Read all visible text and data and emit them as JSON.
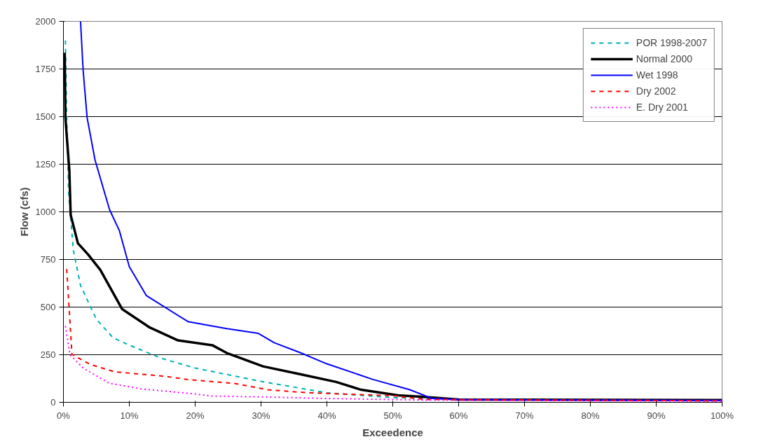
{
  "chart_data": {
    "type": "line",
    "xlabel": "Exceedence",
    "ylabel": "Flow (cfs)",
    "xlim": [
      0,
      100
    ],
    "xticks": [
      {
        "value": 0,
        "label": "0%"
      },
      {
        "value": 10,
        "label": "10%"
      },
      {
        "value": 20,
        "label": "20%"
      },
      {
        "value": 30,
        "label": "30%"
      },
      {
        "value": 40,
        "label": "40%"
      },
      {
        "value": 50,
        "label": "50%"
      },
      {
        "value": 60,
        "label": "60%"
      },
      {
        "value": 70,
        "label": "70%"
      },
      {
        "value": 80,
        "label": "80%"
      },
      {
        "value": 90,
        "label": "90%"
      },
      {
        "value": 100,
        "label": "100%"
      }
    ],
    "ylim": [
      0,
      2000
    ],
    "yticks": [
      0,
      250,
      500,
      750,
      1000,
      1250,
      1500,
      1750,
      2000
    ],
    "grid": "y",
    "legend": "top right",
    "series": [
      {
        "name": "POR 1998-2007",
        "color": "#00b0b0",
        "line_style": "dashed",
        "x": [
          0.3,
          0.5,
          0.8,
          1.5,
          2.6,
          5,
          7.5,
          10,
          15,
          20,
          30,
          40,
          50,
          60,
          100
        ],
        "values": [
          1900,
          1500,
          1100,
          800,
          613,
          436,
          340,
          300,
          230,
          180,
          110,
          50,
          25,
          15,
          8
        ]
      },
      {
        "name": "Normal 2000",
        "color": "#000000",
        "line_style": "solid",
        "x": [
          0.2,
          0.3,
          0.9,
          1.1,
          2.2,
          3.7,
          5.6,
          8.9,
          13,
          17.4,
          22.6,
          24.8,
          30.3,
          35.9,
          41.4,
          45.2,
          50.8,
          54.4,
          60,
          100
        ],
        "values": [
          1835,
          1494,
          1218,
          984,
          835,
          778,
          695,
          490,
          395,
          325,
          300,
          259,
          189,
          148,
          107,
          66,
          37,
          29,
          15,
          12
        ]
      },
      {
        "name": "Wet 1998",
        "color": "#0000ff",
        "line_style": "solid",
        "x": [
          2.6,
          3,
          3.6,
          4.8,
          7,
          8.5,
          10,
          12.6,
          18.9,
          24.8,
          29.6,
          32,
          36,
          40,
          47,
          52.6,
          56,
          60,
          80,
          100
        ],
        "values": [
          2000,
          1740,
          1494,
          1272,
          1012,
          901,
          712,
          560,
          424,
          387,
          362,
          313,
          260,
          202,
          120,
          66,
          20,
          15,
          12,
          10
        ]
      },
      {
        "name": "Dry 2002",
        "color": "#ff0000",
        "line_style": "dashed",
        "x": [
          0.5,
          1.3,
          4,
          7.8,
          15.6,
          19,
          26,
          31,
          36,
          41,
          50,
          55,
          100
        ],
        "values": [
          700,
          251,
          200,
          160,
          136,
          119,
          99,
          66,
          53,
          45,
          35,
          15,
          8
        ]
      },
      {
        "name": "E. Dry 2001",
        "color": "#ff00ff",
        "line_style": "dotted",
        "x": [
          0.3,
          1,
          3,
          7,
          12,
          19.7,
          22.5,
          29.7,
          40,
          55,
          100
        ],
        "values": [
          400,
          250,
          180,
          100,
          70,
          45,
          33,
          29,
          20,
          12,
          6
        ]
      }
    ]
  }
}
